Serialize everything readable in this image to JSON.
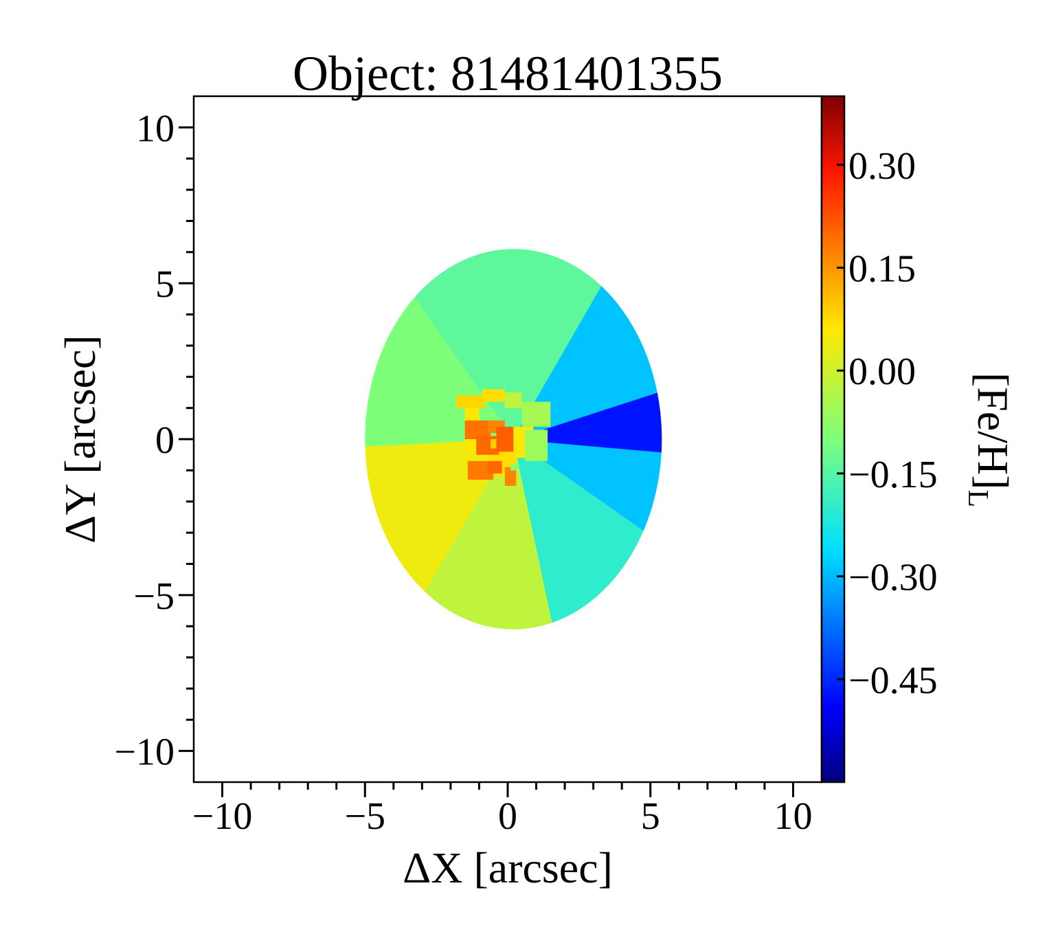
{
  "chart_data": {
    "type": "heatmap",
    "title": "Object: 81481401355",
    "xlabel": "ΔX [arcsec]",
    "ylabel": "ΔY [arcsec]",
    "colorbar_label": "[Fe/H]",
    "colorbar_label_subscript": "L",
    "xlim": [
      -11,
      11
    ],
    "ylim": [
      -11,
      11
    ],
    "xticks": [
      -10,
      -5,
      0,
      5,
      10
    ],
    "xtick_labels": [
      "−10",
      "−5",
      "0",
      "5",
      "10"
    ],
    "yticks": [
      -10,
      -5,
      0,
      5,
      10
    ],
    "ytick_labels": [
      "−10",
      "−5",
      "0",
      "5",
      "10"
    ],
    "colormap": "jet",
    "color_range": [
      -0.6,
      0.4
    ],
    "colorbar_ticks": [
      0.3,
      0.15,
      0.0,
      -0.15,
      -0.3,
      -0.45
    ],
    "colorbar_tick_labels": [
      "0.30",
      "0.15",
      "0.00",
      "−0.15",
      "−0.30",
      "−0.45"
    ],
    "grid": false,
    "footprint": {
      "center": [
        0.2,
        0.0
      ],
      "semi_axis_x": 5.2,
      "semi_axis_y": 6.1
    },
    "regions": [
      {
        "name": "north-northeast",
        "angle_range": [
          60,
          100
        ],
        "value": -0.14
      },
      {
        "name": "north",
        "angle_range": [
          100,
          125
        ],
        "value": -0.14
      },
      {
        "name": "north-northwest",
        "angle_range": [
          125,
          150
        ],
        "value": -0.1
      },
      {
        "name": "northwest",
        "angle_range": [
          150,
          183
        ],
        "value": -0.1
      },
      {
        "name": "southwest",
        "angle_range": [
          183,
          240
        ],
        "value": 0.04
      },
      {
        "name": "south",
        "angle_range": [
          240,
          282
        ],
        "value": -0.02
      },
      {
        "name": "southeast",
        "angle_range": [
          282,
          325
        ],
        "value": -0.2
      },
      {
        "name": "east",
        "angle_range": [
          325,
          355
        ],
        "value": -0.29
      },
      {
        "name": "east-far",
        "angle_range": [
          355,
          18
        ],
        "value": -0.47
      },
      {
        "name": "northeast",
        "angle_range": [
          18,
          60
        ],
        "value": -0.29
      }
    ],
    "core_cells": [
      {
        "x": -1.8,
        "y": 1.0,
        "w": 1.0,
        "h": 0.4,
        "value": 0.08
      },
      {
        "x": -0.9,
        "y": 1.2,
        "w": 0.8,
        "h": 0.4,
        "value": 0.07
      },
      {
        "x": -0.1,
        "y": 1.0,
        "w": 0.6,
        "h": 0.5,
        "value": -0.02
      },
      {
        "x": 0.5,
        "y": 0.4,
        "w": 1.0,
        "h": 0.8,
        "value": -0.05
      },
      {
        "x": -0.1,
        "y": -0.6,
        "w": 1.0,
        "h": 1.0,
        "value": 0.05
      },
      {
        "x": 0.6,
        "y": -0.7,
        "w": 0.8,
        "h": 1.0,
        "value": -0.06
      },
      {
        "x": -0.7,
        "y": -1.2,
        "w": 1.0,
        "h": 1.0,
        "value": 0.07
      },
      {
        "x": -1.5,
        "y": 0.5,
        "w": 0.5,
        "h": 0.5,
        "value": 0.06
      },
      {
        "x": -1.5,
        "y": -0.4,
        "w": 0.6,
        "h": 0.6,
        "value": 0.06
      },
      {
        "x": -1.5,
        "y": 0.0,
        "w": 0.9,
        "h": 0.6,
        "value": 0.19
      },
      {
        "x": -1.1,
        "y": -0.5,
        "w": 0.8,
        "h": 0.6,
        "value": 0.2
      },
      {
        "x": -0.7,
        "y": 0.2,
        "w": 0.6,
        "h": 0.4,
        "value": 0.17
      },
      {
        "x": -0.4,
        "y": -0.4,
        "w": 0.6,
        "h": 0.8,
        "value": 0.21
      },
      {
        "x": -1.4,
        "y": -1.3,
        "w": 0.9,
        "h": 0.6,
        "value": 0.18
      },
      {
        "x": -0.7,
        "y": -1.1,
        "w": 0.5,
        "h": 0.4,
        "value": 0.2
      },
      {
        "x": -0.1,
        "y": -1.5,
        "w": 0.4,
        "h": 0.6,
        "value": 0.17
      },
      {
        "x": -0.6,
        "y": -0.3,
        "w": 0.2,
        "h": 0.3,
        "value": 0.09
      },
      {
        "x": 0.1,
        "y": -1.0,
        "w": 0.3,
        "h": 0.2,
        "value": -0.08
      }
    ]
  }
}
